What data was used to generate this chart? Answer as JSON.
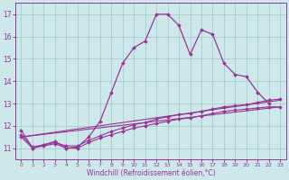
{
  "xlabel": "Windchill (Refroidissement éolien,°C)",
  "background_color": "#cce8e8",
  "grid_color": "#aacccc",
  "line_color": "#993399",
  "xlim": [
    -0.5,
    23.5
  ],
  "ylim": [
    10.5,
    17.5
  ],
  "yticks": [
    11,
    12,
    13,
    14,
    15,
    16,
    17
  ],
  "xticks": [
    0,
    1,
    2,
    3,
    4,
    5,
    6,
    7,
    8,
    9,
    10,
    11,
    12,
    13,
    14,
    15,
    16,
    17,
    18,
    19,
    20,
    21,
    22,
    23
  ],
  "main_x": [
    0,
    1,
    2,
    3,
    4,
    5,
    6,
    7,
    8,
    9,
    10,
    11,
    12,
    13,
    14,
    15,
    16,
    17,
    18,
    19,
    20,
    21,
    22
  ],
  "main_y": [
    11.8,
    11.0,
    11.15,
    11.3,
    11.0,
    11.05,
    11.5,
    12.2,
    13.5,
    14.8,
    15.5,
    15.8,
    17.0,
    17.0,
    16.5,
    15.2,
    16.3,
    16.1,
    14.8,
    14.3,
    14.2,
    13.5,
    13.0
  ],
  "line2_x": [
    0,
    1,
    2,
    3,
    4,
    5,
    6,
    7,
    8,
    9,
    10,
    11,
    12,
    13,
    14,
    15,
    16,
    17,
    18,
    19,
    20,
    21,
    22,
    23
  ],
  "line2_y": [
    11.6,
    11.05,
    11.15,
    11.25,
    11.1,
    11.1,
    11.35,
    11.55,
    11.75,
    11.9,
    12.05,
    12.15,
    12.3,
    12.4,
    12.5,
    12.55,
    12.65,
    12.75,
    12.85,
    12.9,
    12.95,
    13.05,
    13.15,
    13.2
  ],
  "line3_x": [
    0,
    1,
    2,
    3,
    4,
    5,
    6,
    7,
    8,
    9,
    10,
    11,
    12,
    13,
    14,
    15,
    16,
    17,
    18,
    19,
    20,
    21,
    22,
    23
  ],
  "line3_y": [
    11.5,
    11.0,
    11.1,
    11.2,
    11.0,
    11.0,
    11.25,
    11.45,
    11.6,
    11.75,
    11.9,
    12.0,
    12.1,
    12.2,
    12.3,
    12.35,
    12.45,
    12.55,
    12.65,
    12.7,
    12.75,
    12.8,
    12.85,
    12.85
  ],
  "line4_x": [
    0,
    23
  ],
  "line4_y": [
    11.5,
    13.15
  ],
  "line5_x": [
    0,
    23
  ],
  "line5_y": [
    11.5,
    12.85
  ]
}
